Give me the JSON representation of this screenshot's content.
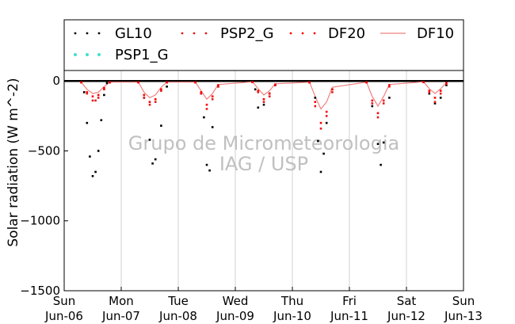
{
  "chart_data": {
    "type": "scatter",
    "title": "",
    "ylabel": "Solar radiation (W m^-2)",
    "xlabel": "",
    "ylim": [
      -1500,
      75
    ],
    "xlim": [
      0,
      7
    ],
    "yticks": [
      0,
      -500,
      -1000,
      -1500
    ],
    "ytick_labels": [
      "0",
      "−500",
      "−1000",
      "−1500"
    ],
    "xticks": [
      {
        "x": 0,
        "day": "Sun",
        "date": "Jun-06"
      },
      {
        "x": 1,
        "day": "Mon",
        "date": "Jun-07"
      },
      {
        "x": 2,
        "day": "Tue",
        "date": "Jun-08"
      },
      {
        "x": 3,
        "day": "Wed",
        "date": "Jun-09"
      },
      {
        "x": 4,
        "day": "Thu",
        "date": "Jun-10"
      },
      {
        "x": 5,
        "day": "Fri",
        "date": "Jun-11"
      },
      {
        "x": 6,
        "day": "Sat",
        "date": "Jun-12"
      },
      {
        "x": 7,
        "day": "Sun",
        "date": "Jun-13"
      }
    ],
    "grid": "vertical",
    "legend_position": "top",
    "watermark": [
      "Grupo de Micrometeorologia",
      "IAG / USP"
    ],
    "series": [
      {
        "name": "GL10",
        "color": "#000000",
        "style": "dots",
        "x": [
          0.3,
          0.35,
          0.4,
          0.45,
          0.5,
          0.55,
          0.6,
          0.65,
          0.7,
          0.75,
          0.8,
          1.3,
          1.4,
          1.5,
          1.55,
          1.6,
          1.7,
          1.8,
          2.3,
          2.4,
          2.45,
          2.5,
          2.55,
          2.6,
          2.7,
          3.3,
          3.35,
          3.4,
          3.5,
          3.6,
          3.7,
          4.3,
          4.4,
          4.45,
          4.5,
          4.55,
          4.6,
          4.7,
          5.3,
          5.4,
          5.5,
          5.55,
          5.6,
          5.7,
          6.3,
          6.4,
          6.5,
          6.6,
          6.7
        ],
        "y": [
          -5,
          -80,
          -300,
          -540,
          -680,
          -650,
          -500,
          -280,
          -100,
          -15,
          -5,
          -8,
          -120,
          -420,
          -590,
          -560,
          -320,
          -40,
          -8,
          -90,
          -260,
          -600,
          -640,
          -330,
          -40,
          -5,
          -60,
          -190,
          -170,
          -90,
          -30,
          -8,
          -120,
          -430,
          -650,
          -520,
          -300,
          -60,
          -8,
          -180,
          -450,
          -600,
          -440,
          -120,
          -5,
          -90,
          -160,
          -120,
          -30
        ]
      },
      {
        "name": "PSP2_G",
        "color": "#e41a1c",
        "style": "dots",
        "x": [
          0.3,
          0.4,
          0.5,
          0.55,
          0.6,
          0.7,
          0.8,
          1.3,
          1.4,
          1.5,
          1.6,
          1.7,
          1.8,
          2.3,
          2.4,
          2.5,
          2.6,
          2.7,
          3.3,
          3.4,
          3.5,
          3.6,
          3.7,
          4.3,
          4.4,
          4.5,
          4.6,
          4.7,
          5.3,
          5.4,
          5.5,
          5.6,
          5.7,
          6.3,
          6.4,
          6.5,
          6.6,
          6.7
        ],
        "y": [
          -10,
          -90,
          -140,
          -140,
          -120,
          -60,
          -10,
          -10,
          -120,
          -170,
          -150,
          -70,
          -10,
          -10,
          -90,
          -200,
          -130,
          -40,
          -8,
          -80,
          -150,
          -110,
          -30,
          -10,
          -180,
          -340,
          -250,
          -80,
          -10,
          -160,
          -260,
          -160,
          -40,
          -8,
          -80,
          -150,
          -90,
          -20
        ]
      },
      {
        "name": "DF20",
        "color": "#ff0000",
        "style": "dots",
        "x": [
          0.3,
          0.4,
          0.5,
          0.6,
          0.7,
          0.8,
          1.3,
          1.4,
          1.5,
          1.6,
          1.7,
          1.8,
          2.3,
          2.4,
          2.5,
          2.6,
          2.7,
          3.3,
          3.4,
          3.5,
          3.6,
          3.7,
          4.3,
          4.4,
          4.5,
          4.6,
          4.7,
          5.3,
          5.4,
          5.5,
          5.6,
          5.7,
          6.3,
          6.4,
          6.5,
          6.6,
          6.7
        ],
        "y": [
          -10,
          -80,
          -110,
          -100,
          -50,
          -10,
          -10,
          -100,
          -150,
          -130,
          -60,
          -10,
          -10,
          -80,
          -170,
          -110,
          -30,
          -8,
          -70,
          -130,
          -90,
          -25,
          -10,
          -150,
          -300,
          -220,
          -60,
          -10,
          -140,
          -230,
          -140,
          -30,
          -8,
          -70,
          -120,
          -70,
          -15
        ]
      },
      {
        "name": "DF10",
        "color": "#f08080",
        "style": "line",
        "x": [
          0.3,
          0.4,
          0.5,
          0.6,
          0.7,
          0.8,
          1.3,
          1.4,
          1.5,
          1.6,
          1.7,
          1.8,
          2.3,
          2.4,
          2.5,
          2.6,
          2.7,
          3.3,
          3.4,
          3.5,
          3.6,
          3.7,
          4.3,
          4.4,
          4.5,
          4.6,
          4.7,
          5.3,
          5.4,
          5.5,
          5.6,
          5.7,
          6.3,
          6.4,
          6.5,
          6.6,
          6.7
        ],
        "y": [
          -8,
          -60,
          -90,
          -80,
          -40,
          -8,
          -8,
          -80,
          -120,
          -100,
          -45,
          -8,
          -8,
          -70,
          -130,
          -90,
          -25,
          -6,
          -55,
          -100,
          -70,
          -20,
          -8,
          -110,
          -200,
          -150,
          -45,
          -8,
          -110,
          -180,
          -110,
          -25,
          -6,
          -55,
          -90,
          -55,
          -12
        ]
      },
      {
        "name": "PSP1_G",
        "color": "#40e0d0",
        "style": "dots",
        "x": [
          0.0,
          1.0,
          2.0,
          3.0,
          4.0,
          5.0,
          6.0,
          7.0
        ],
        "y": [
          0,
          0,
          0,
          0,
          0,
          0,
          0,
          0
        ]
      }
    ]
  }
}
